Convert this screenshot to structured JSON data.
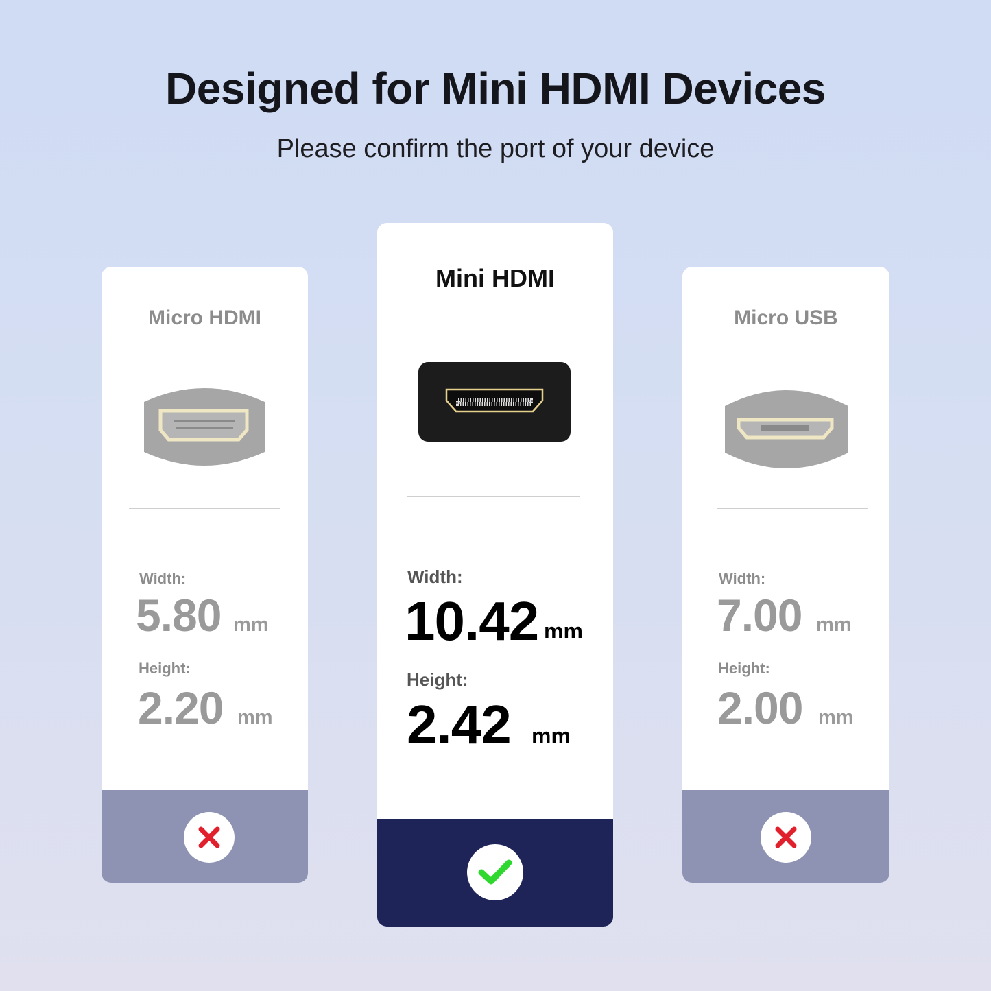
{
  "header": {
    "title": "Designed for Mini HDMI Devices",
    "subtitle": "Please confirm the port of your device"
  },
  "cards": [
    {
      "name": "Micro HDMI",
      "width_label": "Width:",
      "width_value": "5.80",
      "height_label": "Height:",
      "height_value": "2.20",
      "unit": "mm",
      "compatible": false,
      "icon": "cross-icon"
    },
    {
      "name": "Mini HDMI",
      "width_label": "Width:",
      "width_value": "10.42",
      "height_label": "Height:",
      "height_value": "2.42",
      "unit": "mm",
      "compatible": true,
      "icon": "check-icon"
    },
    {
      "name": "Micro USB",
      "width_label": "Width:",
      "width_value": "7.00",
      "height_label": "Height:",
      "height_value": "2.00",
      "unit": "mm",
      "compatible": false,
      "icon": "cross-icon"
    }
  ],
  "colors": {
    "selected_band": "#1e2358",
    "unselected_band": "#8e93b3",
    "cross": "#e0202c",
    "check": "#2ed82e"
  }
}
